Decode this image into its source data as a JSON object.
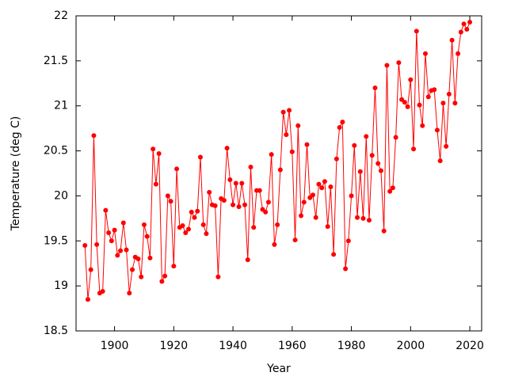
{
  "chart_data": {
    "type": "line",
    "xlabel": "Year",
    "ylabel": "Temperature (deg C)",
    "xlim": [
      1887,
      2024
    ],
    "ylim": [
      18.5,
      22
    ],
    "xticks": [
      1900,
      1920,
      1940,
      1960,
      1980,
      2000,
      2020
    ],
    "yticks": [
      18.5,
      19,
      19.5,
      20,
      20.5,
      21,
      21.5,
      22
    ],
    "x": [
      1890,
      1891,
      1892,
      1893,
      1894,
      1895,
      1896,
      1897,
      1898,
      1899,
      1900,
      1901,
      1902,
      1903,
      1904,
      1905,
      1906,
      1907,
      1908,
      1909,
      1910,
      1911,
      1912,
      1913,
      1914,
      1915,
      1916,
      1917,
      1918,
      1919,
      1920,
      1921,
      1922,
      1923,
      1924,
      1925,
      1926,
      1927,
      1928,
      1929,
      1930,
      1931,
      1932,
      1933,
      1934,
      1935,
      1936,
      1937,
      1938,
      1939,
      1940,
      1941,
      1942,
      1943,
      1944,
      1945,
      1946,
      1947,
      1948,
      1949,
      1950,
      1951,
      1952,
      1953,
      1954,
      1955,
      1956,
      1957,
      1958,
      1959,
      1960,
      1961,
      1962,
      1963,
      1964,
      1965,
      1966,
      1967,
      1968,
      1969,
      1970,
      1971,
      1972,
      1973,
      1974,
      1975,
      1976,
      1977,
      1978,
      1979,
      1980,
      1981,
      1982,
      1983,
      1984,
      1985,
      1986,
      1987,
      1988,
      1989,
      1990,
      1991,
      1992,
      1993,
      1994,
      1995,
      1996,
      1997,
      1998,
      1999,
      2000,
      2001,
      2002,
      2003,
      2004,
      2005,
      2006,
      2007,
      2008,
      2009,
      2010,
      2011,
      2012,
      2013,
      2014,
      2015,
      2016,
      2017,
      2018,
      2019,
      2020
    ],
    "series": [
      {
        "color": "#ff0000",
        "values": [
          19.45,
          18.85,
          19.18,
          20.67,
          19.46,
          18.92,
          18.94,
          19.84,
          19.59,
          19.5,
          19.62,
          19.34,
          19.39,
          19.7,
          19.4,
          18.92,
          19.18,
          19.32,
          19.3,
          19.1,
          19.68,
          19.55,
          19.31,
          20.52,
          20.13,
          20.47,
          19.05,
          19.11,
          20.0,
          19.94,
          19.22,
          20.3,
          19.65,
          19.67,
          19.59,
          19.63,
          19.82,
          19.76,
          19.83,
          20.43,
          19.68,
          19.58,
          20.04,
          19.9,
          19.89,
          19.1,
          19.97,
          19.95,
          20.53,
          20.18,
          19.9,
          20.14,
          19.88,
          20.14,
          19.9,
          19.29,
          20.32,
          19.65,
          20.06,
          20.06,
          19.85,
          19.82,
          19.93,
          20.46,
          19.46,
          19.68,
          20.29,
          20.93,
          20.68,
          20.95,
          20.49,
          19.51,
          20.78,
          19.78,
          19.93,
          20.57,
          19.98,
          20.01,
          19.76,
          20.13,
          20.09,
          20.16,
          19.66,
          20.1,
          19.35,
          20.41,
          20.76,
          20.82,
          19.19,
          19.5,
          20.0,
          20.56,
          19.76,
          20.27,
          19.75,
          20.66,
          19.73,
          20.45,
          21.2,
          20.36,
          20.28,
          19.61,
          21.45,
          20.05,
          20.09,
          20.65,
          21.48,
          21.07,
          21.04,
          20.99,
          21.29,
          20.52,
          21.83,
          21.01,
          20.78,
          21.58,
          21.1,
          21.17,
          21.18,
          20.73,
          20.39,
          21.03,
          20.55,
          21.13,
          21.73,
          21.03,
          21.58,
          21.82,
          21.91,
          21.85,
          21.93
        ]
      }
    ]
  }
}
